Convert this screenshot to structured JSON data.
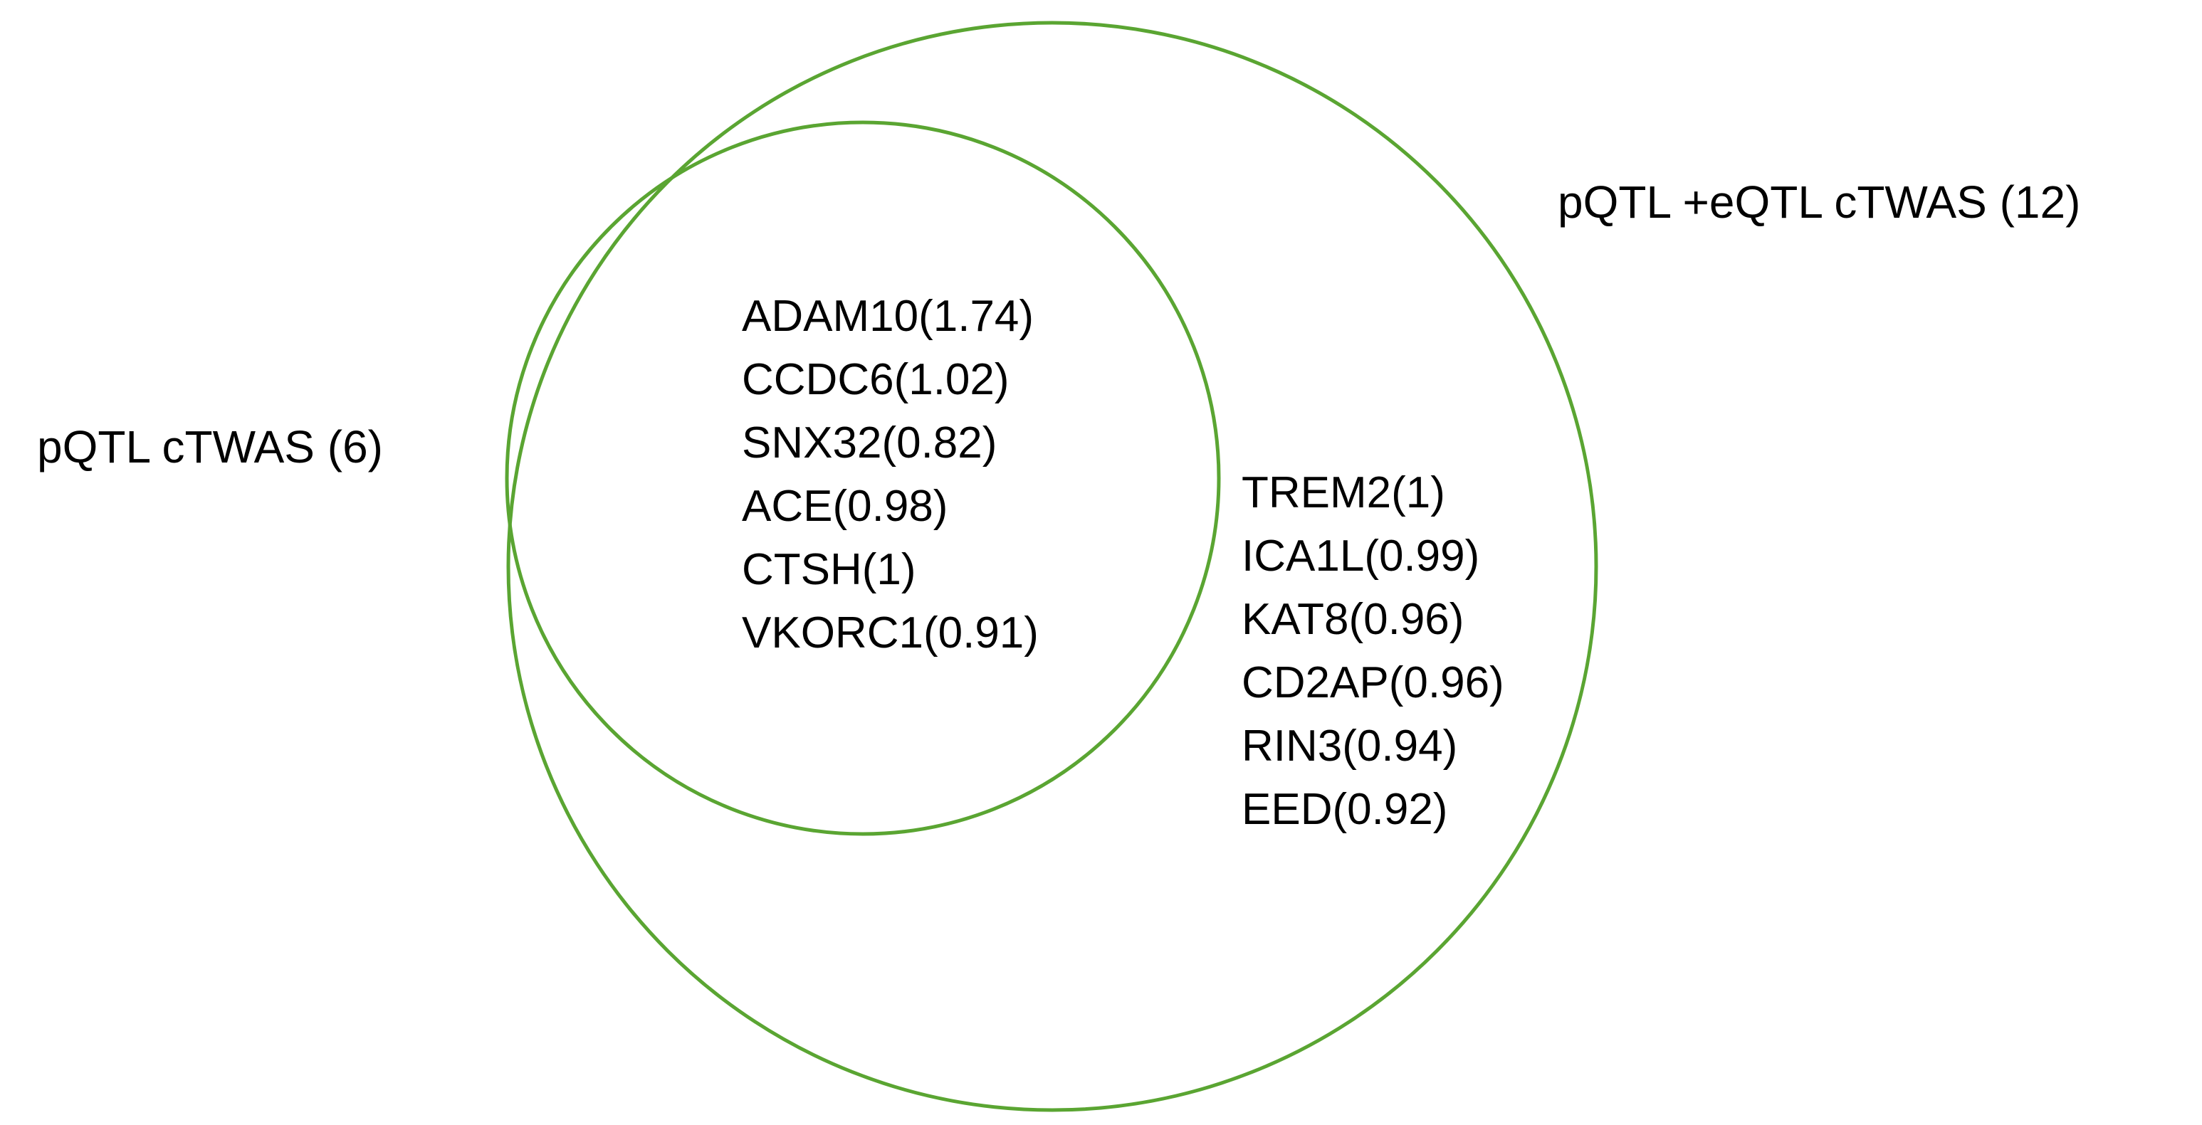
{
  "diagram": {
    "type": "venn",
    "line_color": "#5aa532",
    "sets": [
      {
        "id": "pqtl",
        "label": "pQTL  cTWAS (6)",
        "genes": [
          "ADAM10(1.74)",
          "CCDC6(1.02)",
          "SNX32(0.82)",
          "ACE(0.98)",
          "CTSH(1)",
          "VKORC1(0.91)"
        ]
      },
      {
        "id": "pqtl_eqtl",
        "label": "pQTL +eQTL cTWAS (12)",
        "genes": [
          "TREM2(1)",
          "ICA1L(0.99)",
          "KAT8(0.96)",
          "CD2AP(0.96)",
          "RIN3(0.94)",
          "EED(0.92)"
        ]
      }
    ]
  }
}
